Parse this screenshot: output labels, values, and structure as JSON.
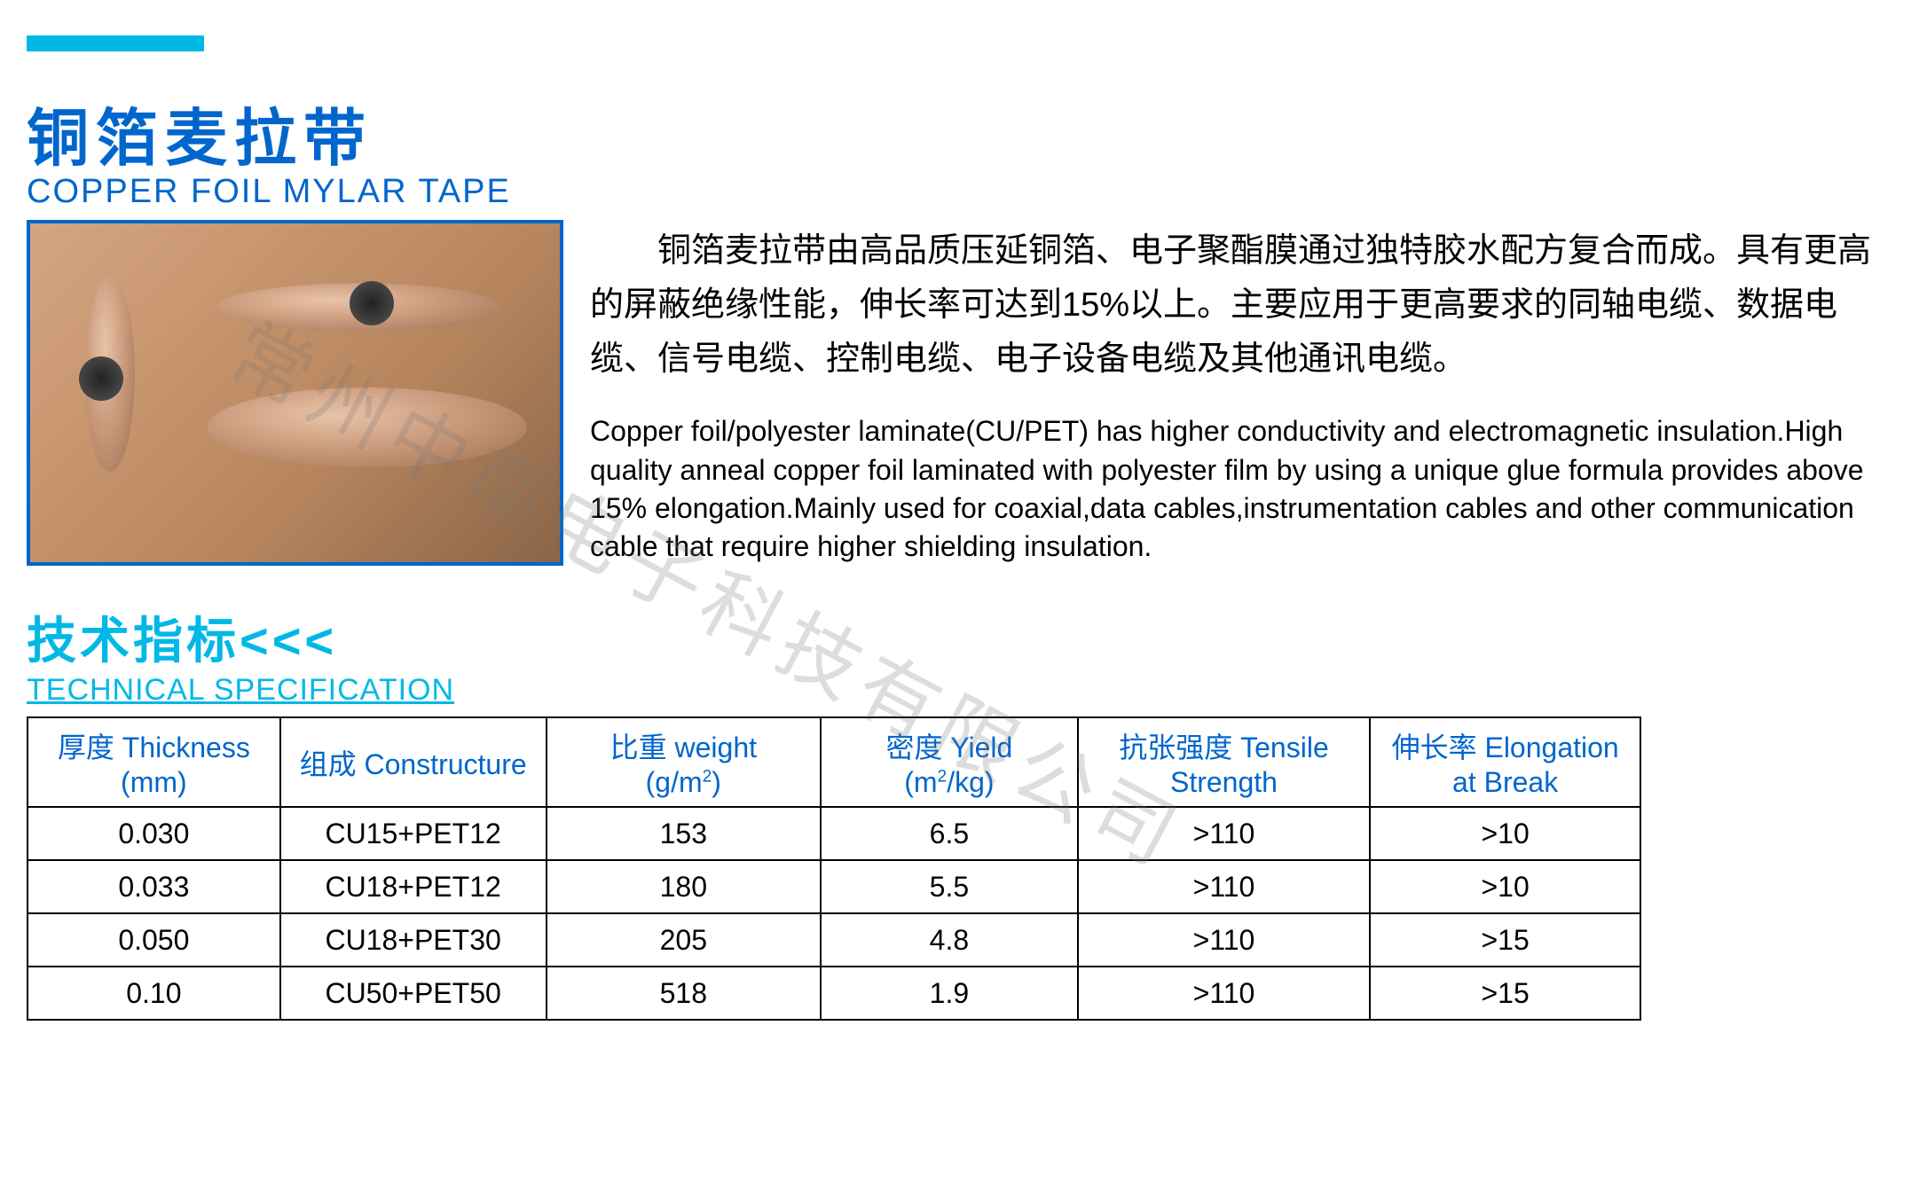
{
  "header": {
    "title_cn": "铜箔麦拉带",
    "title_en": "COPPER FOIL MYLAR TAPE"
  },
  "description": {
    "cn": "铜箔麦拉带由高品质压延铜箔、电子聚酯膜通过独特胶水配方复合而成。具有更高的屏蔽绝缘性能，伸长率可达到15%以上。主要应用于更高要求的同轴电缆、数据电缆、信号电缆、控制电缆、电子设备电缆及其他通讯电缆。",
    "en": "Copper foil/polyester laminate(CU/PET) has higher conductivity and electromagnetic insulation.High quality anneal copper foil laminated with polyester film by using a unique glue formula provides above 15% elongation.Mainly used for coaxial,data cables,instrumentation cables and other communication cable that require higher shielding insulation."
  },
  "spec_header": {
    "cn": "技术指标<<<",
    "en": "TECHNICAL SPECIFICATION"
  },
  "table": {
    "columns": [
      {
        "cn": "厚度",
        "en": "Thickness",
        "unit": "(mm)"
      },
      {
        "cn": "组成",
        "en": "Constructure",
        "unit": ""
      },
      {
        "cn": "比重",
        "en": "weight",
        "unit": "(g/m²)"
      },
      {
        "cn": "密度",
        "en": "Yield",
        "unit": "(m²/kg)"
      },
      {
        "cn": "抗张强度",
        "en": "Tensile",
        "unit": "Strength"
      },
      {
        "cn": "伸长率",
        "en": "Elongation",
        "unit": "at  Break"
      }
    ],
    "rows": [
      [
        "0.030",
        "CU15+PET12",
        "153",
        "6.5",
        ">110",
        ">10"
      ],
      [
        "0.033",
        "CU18+PET12",
        "180",
        "5.5",
        ">110",
        ">10"
      ],
      [
        "0.050",
        "CU18+PET30",
        "205",
        "4.8",
        ">110",
        ">15"
      ],
      [
        "0.10",
        "CU50+PET50",
        "518",
        "1.9",
        ">110",
        ">15"
      ]
    ],
    "col_widths": [
      "285px",
      "300px",
      "310px",
      "290px",
      "330px",
      "305px"
    ]
  },
  "watermark": "常州中南电子科技有限公司",
  "colors": {
    "brand_blue": "#0066cc",
    "accent_cyan": "#00b8e6",
    "text": "#000000",
    "border": "#000000"
  }
}
